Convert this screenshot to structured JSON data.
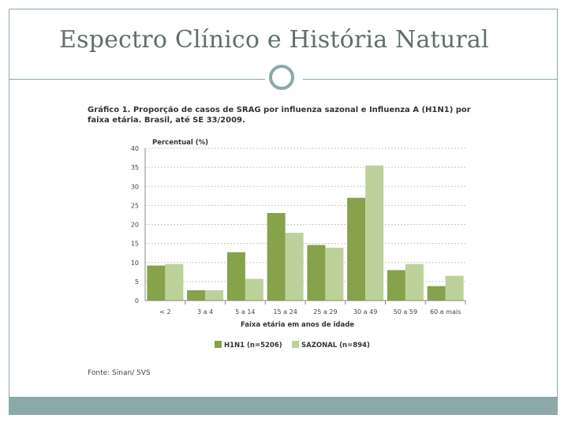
{
  "slide": {
    "title": "Espectro Clínico e História Natural"
  },
  "chart_heading": "Gráfico 1. Proporção de casos de SRAG por influenza sazonal e Influenza A (H1N1) por faixa etária. Brasil, até SE 33/2009.",
  "source": "Fonte: Sinan/ SVS",
  "colors": {
    "h1n1": "#86a24a",
    "sazonal": "#bcd29a",
    "accent": "#8aa9a8"
  },
  "chart_data": {
    "type": "bar",
    "ylabel": "Percentual (%)",
    "xlabel": "Faixa etária em anos de idade",
    "categories": [
      "< 2",
      "3 a 4",
      "5 a 14",
      "15 a 24",
      "25 a 29",
      "30 a 49",
      "50 a 59",
      "60 e mais"
    ],
    "yticks": [
      "0",
      "5",
      "10",
      "15",
      "20",
      "25",
      "30",
      "35",
      "40"
    ],
    "ylim": [
      0,
      40
    ],
    "grid": true,
    "legend_position": "bottom",
    "series": [
      {
        "name": "H1N1 (n=5206)",
        "values": [
          9.2,
          2.7,
          12.7,
          23.0,
          14.6,
          27.0,
          8.0,
          3.8
        ]
      },
      {
        "name": "SAZONAL (n=894)",
        "values": [
          9.6,
          2.7,
          5.7,
          17.8,
          13.9,
          35.5,
          9.6,
          6.5
        ]
      }
    ]
  }
}
